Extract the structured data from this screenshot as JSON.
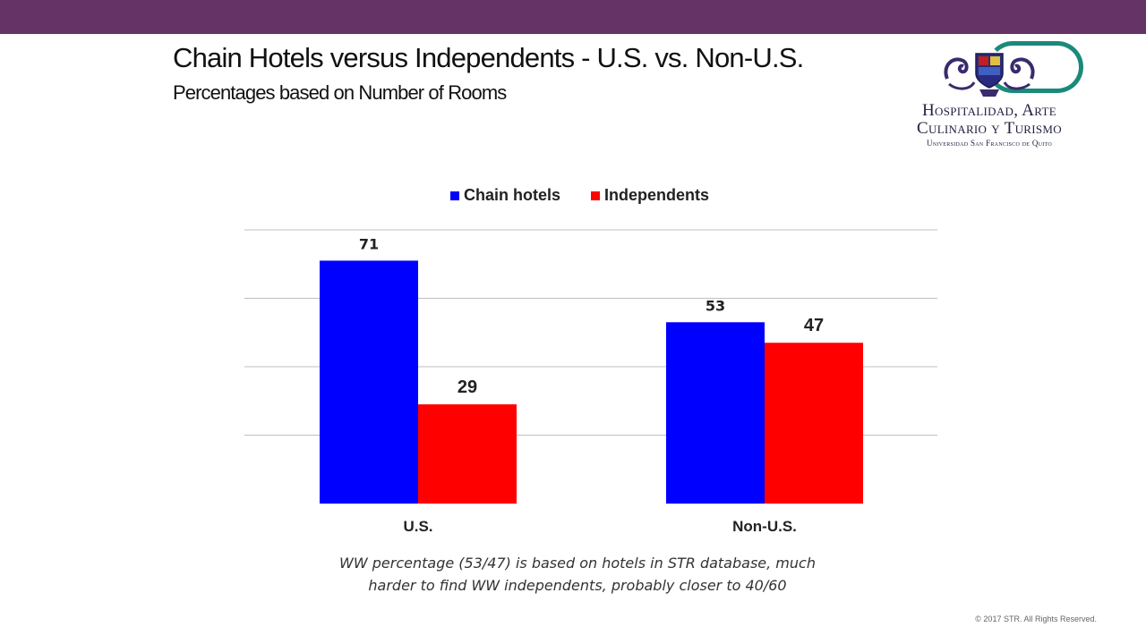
{
  "slide": {
    "title": "Chain Hotels versus Independents - U.S. vs. Non-U.S.",
    "subtitle": "Percentages based on Number of Rooms",
    "header_bar_color": "#663366",
    "copyright": "© 2017 STR. All Rights Reserved."
  },
  "logo": {
    "line1": "Hospitalidad, Arte",
    "line2": "Culinario y Turismo",
    "line3": "Universidad San Francisco de Quito"
  },
  "footnote": {
    "line1": "WW percentage (53/47) is based on hotels in STR database, much",
    "line2": "harder to find WW independents, probably closer to 40/60"
  },
  "chart_data": {
    "type": "bar",
    "categories": [
      "U.S.",
      "Non-U.S."
    ],
    "series": [
      {
        "name": "Chain hotels",
        "values": [
          71,
          53
        ],
        "color": "#0000FF"
      },
      {
        "name": "Independents",
        "values": [
          29,
          47
        ],
        "color": "#FF0000"
      }
    ],
    "data_labels": [
      "71",
      "29",
      "53",
      "47"
    ],
    "ylim": [
      0,
      80
    ],
    "grid": true,
    "legend": "top"
  }
}
